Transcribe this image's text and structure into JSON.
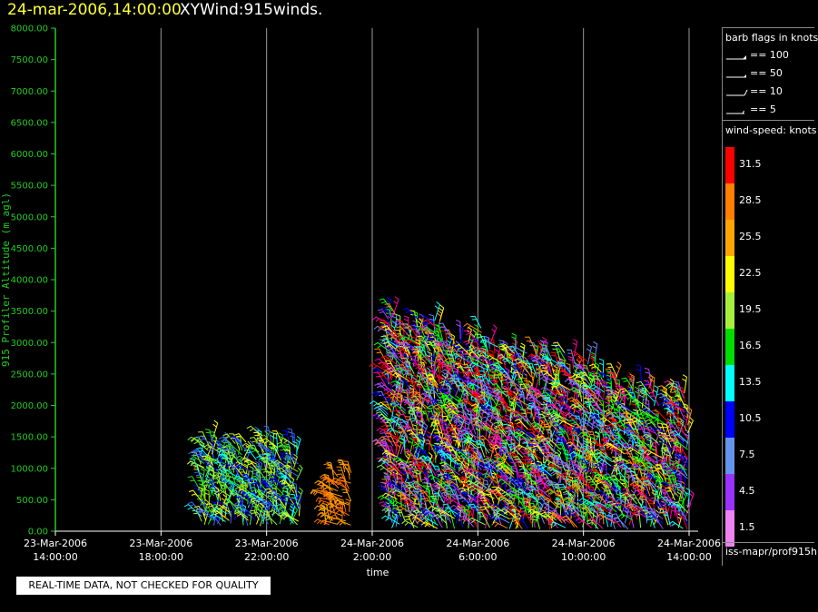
{
  "header": {
    "date": "24-mar-2006,14:00:00",
    "product": "XYWind:915winds."
  },
  "chart_data": {
    "type": "scatter",
    "subtype": "wind-barb time-height plot",
    "xlabel": "time",
    "ylabel": "915 Profiler Altitude (m agl)",
    "x_ticks": [
      {
        "date": "23-Mar-2006",
        "time": "14:00:00",
        "hours": 0
      },
      {
        "date": "23-Mar-2006",
        "time": "18:00:00",
        "hours": 4
      },
      {
        "date": "23-Mar-2006",
        "time": "22:00:00",
        "hours": 8
      },
      {
        "date": "24-Mar-2006",
        "time": "2:00:00",
        "hours": 12
      },
      {
        "date": "24-Mar-2006",
        "time": "6:00:00",
        "hours": 16
      },
      {
        "date": "24-Mar-2006",
        "time": "10:00:00",
        "hours": 20
      },
      {
        "date": "24-Mar-2006",
        "time": "14:00:00",
        "hours": 24
      }
    ],
    "y_ticks": [
      "0.00",
      "500.00",
      "1000.00",
      "1500.00",
      "2000.00",
      "2500.00",
      "3000.00",
      "3500.00",
      "4000.00",
      "4500.00",
      "5000.00",
      "5500.00",
      "6000.00",
      "6500.00",
      "7000.00",
      "7500.00",
      "8000.00"
    ],
    "ylim": [
      0,
      8000
    ],
    "xlim_hours": [
      0,
      24
    ],
    "vertical_grid": true,
    "colors": {
      "axis": "#22cc22",
      "grid": "#9a9a9a",
      "title_date": "#ffff33"
    },
    "data_blocks": [
      {
        "t_start": 5.5,
        "t_end": 9.2,
        "alt_min": 100,
        "alt_max": 1600,
        "colors": [
          "#22dd22",
          "#aaee22",
          "#ffff00",
          "#00ffff",
          "#3366ff",
          "#0000ff",
          "#66ee44"
        ]
      },
      {
        "t_start": 10.2,
        "t_end": 11.2,
        "alt_min": 100,
        "alt_max": 1000,
        "colors": [
          "#ff8800",
          "#ffaa00",
          "#ff6600"
        ]
      },
      {
        "t_start": 12.6,
        "t_end": 24.0,
        "alt_min": 50,
        "alt_max": 3600,
        "colors": [
          "#ff0000",
          "#ff8800",
          "#ffff00",
          "#00ff00",
          "#00ffff",
          "#0000ff",
          "#aa44ff",
          "#6688ff",
          "#ff00aa",
          "#88ff44"
        ]
      }
    ]
  },
  "legend": {
    "flags_title": "barb flags in knots",
    "flags": [
      {
        "label": "== 100",
        "kind": "pennant"
      },
      {
        "label": "== 50",
        "kind": "pennant-small"
      },
      {
        "label": "== 10",
        "kind": "full"
      },
      {
        "label": "== 5",
        "kind": "half"
      }
    ],
    "speed_title": "wind-speed: knots",
    "speeds": [
      {
        "label": "31.5",
        "color": "#ff0000"
      },
      {
        "label": "28.5",
        "color": "#ff7f00"
      },
      {
        "label": "25.5",
        "color": "#ffa500"
      },
      {
        "label": "22.5",
        "color": "#ffff00"
      },
      {
        "label": "19.5",
        "color": "#a6f03c"
      },
      {
        "label": "16.5",
        "color": "#00dd00"
      },
      {
        "label": "13.5",
        "color": "#00ffff"
      },
      {
        "label": "10.5",
        "color": "#0000ff"
      },
      {
        "label": "7.5",
        "color": "#6495ed"
      },
      {
        "label": "4.5",
        "color": "#9932ff"
      },
      {
        "label": "1.5",
        "color": "#ee82ee"
      }
    ],
    "source": "iss-mapr/prof915h"
  },
  "qc_note": "REAL-TIME DATA, NOT CHECKED FOR QUALITY"
}
